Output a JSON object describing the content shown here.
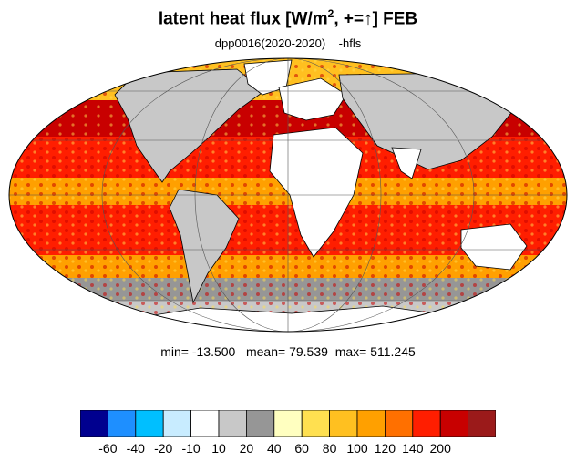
{
  "title": {
    "main": "latent heat flux [W/m",
    "sup": "2",
    "after": ", +=",
    "arrow": "↑",
    "close": "]  FEB"
  },
  "subtitle": "dpp0016(2020-2020)    -hfls",
  "stats": {
    "min_label": "min=",
    "min": "-13.500",
    "mean_label": "mean=",
    "mean": "79.539",
    "max_label": "max=",
    "max": "511.245"
  },
  "legend": {
    "colors": [
      "#00008f",
      "#1e8fff",
      "#00bfff",
      "#c8ecff",
      "#ffffff",
      "#c8c8c8",
      "#969696",
      "#ffffc0",
      "#ffe050",
      "#ffc020",
      "#ffa000",
      "#ff7000",
      "#ff1e00",
      "#c80000",
      "#9b1a1a"
    ],
    "labels": [
      "-60",
      "-40",
      "-20",
      "-10",
      "10",
      "20",
      "40",
      "60",
      "80",
      "100",
      "120",
      "140",
      "200"
    ]
  },
  "colors": {
    "ocean_low": "#ffa000",
    "ocean_high": "#c80000",
    "land": "#ffffff"
  }
}
